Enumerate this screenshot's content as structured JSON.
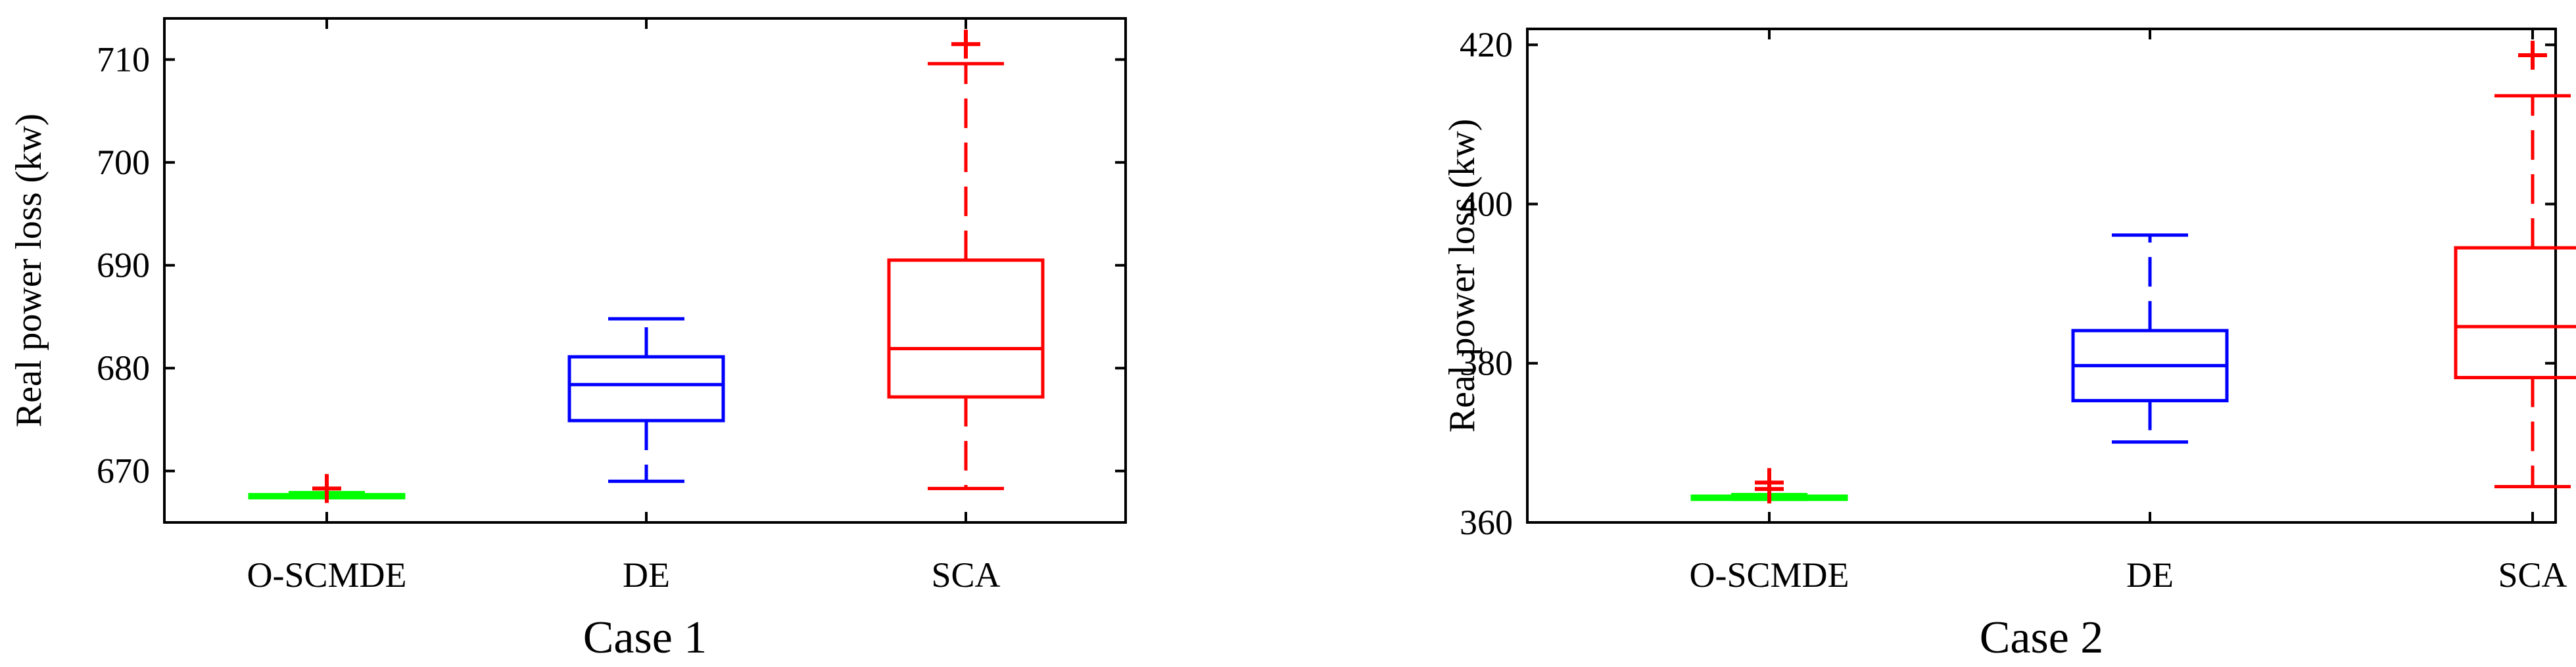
{
  "chart_data": [
    {
      "type": "box",
      "title": "Case 1",
      "ylabel": "Real power loss (kw)",
      "xlabel": "",
      "categories": [
        "O-SCMDE",
        "DE",
        "SCA"
      ],
      "ylim": [
        665,
        714
      ],
      "yticks": [
        670,
        680,
        690,
        700,
        710
      ],
      "grid": false,
      "boxes": [
        {
          "category": "O-SCMDE",
          "color": "#00ff00",
          "whisker_low": 667.4,
          "q1": 667.4,
          "median": 667.5,
          "q3": 667.7,
          "whisker_high": 667.9,
          "outliers": [
            668.3
          ],
          "outlier_color": "#ff0000"
        },
        {
          "category": "DE",
          "color": "#0000ff",
          "whisker_low": 669.0,
          "q1": 674.9,
          "median": 678.4,
          "q3": 681.1,
          "whisker_high": 684.8,
          "outliers": []
        },
        {
          "category": "SCA",
          "color": "#ff0000",
          "whisker_low": 668.3,
          "q1": 677.2,
          "median": 681.9,
          "q3": 690.5,
          "whisker_high": 709.6,
          "outliers": [
            711.5
          ]
        }
      ]
    },
    {
      "type": "box",
      "title": "Case 2",
      "ylabel": "Real power loss (kw)",
      "xlabel": "",
      "categories": [
        "O-SCMDE",
        "DE",
        "SCA"
      ],
      "ylim": [
        360,
        422
      ],
      "yticks": [
        360,
        380,
        400,
        420
      ],
      "grid": false,
      "boxes": [
        {
          "category": "O-SCMDE",
          "color": "#00ff00",
          "whisker_low": 362.9,
          "q1": 362.9,
          "median": 363.0,
          "q3": 363.3,
          "whisker_high": 363.5,
          "outliers": [
            364.2,
            365.0
          ],
          "outlier_color": "#ff0000"
        },
        {
          "category": "DE",
          "color": "#0000ff",
          "whisker_low": 370.1,
          "q1": 375.3,
          "median": 379.7,
          "q3": 384.1,
          "whisker_high": 396.1,
          "outliers": []
        },
        {
          "category": "SCA",
          "color": "#ff0000",
          "whisker_low": 364.5,
          "q1": 378.2,
          "median": 384.6,
          "q3": 394.5,
          "whisker_high": 413.6,
          "outliers": [
            418.7
          ]
        }
      ]
    }
  ]
}
